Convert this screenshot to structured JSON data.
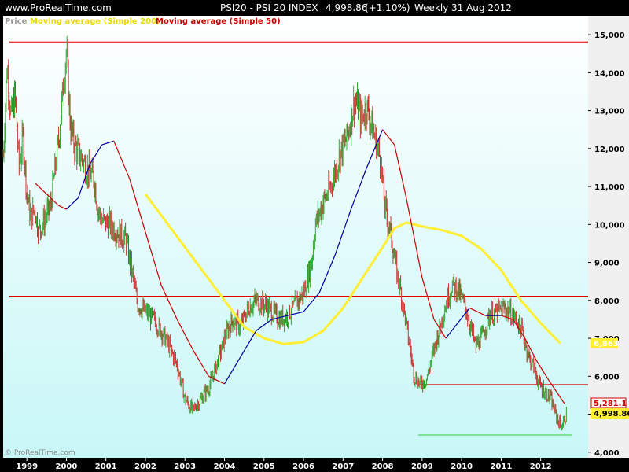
{
  "header": {
    "site": "www.ProRealTime.com",
    "instrument": "PSI20 - PSI 20 INDEX",
    "last": "4,998.86",
    "change": "(+1.10%)",
    "timeframe": "Weekly",
    "date": "31 Aug 2012"
  },
  "legend": {
    "price": "Price",
    "ma200": "Moving average (Simple 200)",
    "ma50": "Moving average (Simple 50)"
  },
  "watermark": "© ProRealTime.com",
  "colors": {
    "background_top": "#ffffff",
    "background_bottom": "#c8f7f7",
    "up_bar": "#33aa33",
    "down_bar": "#cc3333",
    "ma200": "#ffee33",
    "ma50_up": "#000099",
    "ma50_down": "#cc0000",
    "hline": "#dd0000",
    "support": "#33cc33"
  },
  "price_labels": {
    "ma200": "6,863",
    "ma50": "5,281.1",
    "last": "4,998.86"
  },
  "chart_data": {
    "type": "line",
    "title": "PSI20 - PSI 20 INDEX",
    "ylim": [
      3850,
      15500
    ],
    "yticks": [
      4000,
      5000,
      6000,
      7000,
      8000,
      9000,
      10000,
      11000,
      12000,
      13000,
      14000,
      15000
    ],
    "ytick_labels": [
      "4,000",
      "5,000",
      "6,000",
      "7,000",
      "8,000",
      "9,000",
      "10,000",
      "11,000",
      "12,000",
      "13,000",
      "14,000",
      "15,000"
    ],
    "xlim": [
      1998.4,
      2013.2
    ],
    "xticks": [
      "1999",
      "2000",
      "2001",
      "2002",
      "2003",
      "2004",
      "2005",
      "2006",
      "2007",
      "2008",
      "2009",
      "2010",
      "2011",
      "2012"
    ],
    "xtick_values": [
      1999,
      2000,
      2001,
      2002,
      2003,
      2004,
      2005,
      2006,
      2007,
      2008,
      2009,
      2010,
      2011,
      2012
    ],
    "grid": false,
    "series": [
      {
        "name": "Price",
        "style": "ohlc-bars",
        "x": [
          1998.4,
          1998.5,
          1998.6,
          1998.7,
          1998.8,
          1998.9,
          1999.0,
          1999.1,
          1999.2,
          1999.3,
          1999.4,
          1999.6,
          1999.8,
          1999.9,
          2000.0,
          2000.1,
          2000.2,
          2000.3,
          2000.5,
          2000.7,
          2000.8,
          2000.9,
          2001.1,
          2001.3,
          2001.5,
          2001.7,
          2001.8,
          2002.0,
          2002.2,
          2002.4,
          2002.6,
          2002.8,
          2003.0,
          2003.2,
          2003.4,
          2003.6,
          2003.8,
          2004.0,
          2004.2,
          2004.4,
          2004.6,
          2004.8,
          2005.0,
          2005.2,
          2005.4,
          2005.6,
          2005.8,
          2006.0,
          2006.2,
          2006.3,
          2006.5,
          2006.7,
          2006.9,
          2007.1,
          2007.3,
          2007.45,
          2007.6,
          2007.8,
          2007.95,
          2008.05,
          2008.2,
          2008.35,
          2008.5,
          2008.7,
          2008.8,
          2008.95,
          2009.1,
          2009.2,
          2009.4,
          2009.6,
          2009.75,
          2009.9,
          2010.1,
          2010.25,
          2010.35,
          2010.5,
          2010.7,
          2010.9,
          2011.1,
          2011.3,
          2011.45,
          2011.55,
          2011.7,
          2011.85,
          2011.95,
          2012.1,
          2012.25,
          2012.35,
          2012.45,
          2012.55,
          2012.65
        ],
        "y": [
          11800,
          14200,
          12800,
          13400,
          11500,
          12300,
          10800,
          10200,
          10400,
          9800,
          10000,
          10500,
          12200,
          13400,
          14600,
          12600,
          12100,
          11900,
          11500,
          11200,
          10400,
          10100,
          10000,
          9800,
          9600,
          8500,
          7900,
          7700,
          7500,
          7200,
          6800,
          6300,
          5400,
          5100,
          5400,
          5700,
          6300,
          7000,
          7500,
          7300,
          7800,
          8000,
          7900,
          7700,
          7500,
          7600,
          7900,
          8200,
          9000,
          10000,
          10600,
          11000,
          11800,
          12300,
          13300,
          12800,
          13100,
          12300,
          11700,
          10500,
          9800,
          8800,
          8000,
          6700,
          6000,
          5800,
          5900,
          6300,
          7100,
          7900,
          8400,
          8300,
          7800,
          7200,
          6800,
          7000,
          7600,
          7700,
          7800,
          7600,
          7400,
          7100,
          6500,
          6200,
          5800,
          5600,
          5400,
          5100,
          4800,
          4700,
          5000
        ]
      },
      {
        "name": "Moving average (Simple 200)",
        "x": [
          2002.0,
          2002.5,
          2003.0,
          2003.5,
          2004.0,
          2004.5,
          2005.0,
          2005.5,
          2006.0,
          2006.5,
          2007.0,
          2007.5,
          2008.0,
          2008.3,
          2008.6,
          2009.0,
          2009.5,
          2010.0,
          2010.5,
          2011.0,
          2011.5,
          2012.0,
          2012.5
        ],
        "y": [
          10800,
          10100,
          9400,
          8700,
          8000,
          7300,
          7000,
          6850,
          6900,
          7200,
          7800,
          8600,
          9400,
          9900,
          10050,
          9950,
          9850,
          9700,
          9350,
          8800,
          8000,
          7400,
          6863
        ]
      },
      {
        "name": "Moving average (Simple 50)",
        "x": [
          1999.2,
          1999.5,
          1999.8,
          2000.0,
          2000.3,
          2000.6,
          2000.9,
          2001.2,
          2001.6,
          2002.0,
          2002.4,
          2002.8,
          2003.2,
          2003.6,
          2004.0,
          2004.4,
          2004.8,
          2005.2,
          2005.6,
          2006.0,
          2006.4,
          2006.8,
          2007.2,
          2007.6,
          2008.0,
          2008.3,
          2008.6,
          2009.0,
          2009.3,
          2009.6,
          2009.9,
          2010.2,
          2010.6,
          2011.0,
          2011.3,
          2011.6,
          2011.9,
          2012.2,
          2012.6
        ],
        "y": [
          11100,
          10800,
          10500,
          10400,
          10700,
          11600,
          12100,
          12200,
          11200,
          9800,
          8400,
          7500,
          6700,
          6000,
          5800,
          6500,
          7200,
          7500,
          7600,
          7700,
          8200,
          9200,
          10400,
          11500,
          12500,
          12100,
          10700,
          8600,
          7500,
          7000,
          7400,
          7800,
          7600,
          7600,
          7500,
          7000,
          6400,
          5900,
          5281.1
        ]
      }
    ],
    "hlines": [
      14800,
      8100,
      5780,
      4450
    ],
    "last_value": 4998.86
  }
}
